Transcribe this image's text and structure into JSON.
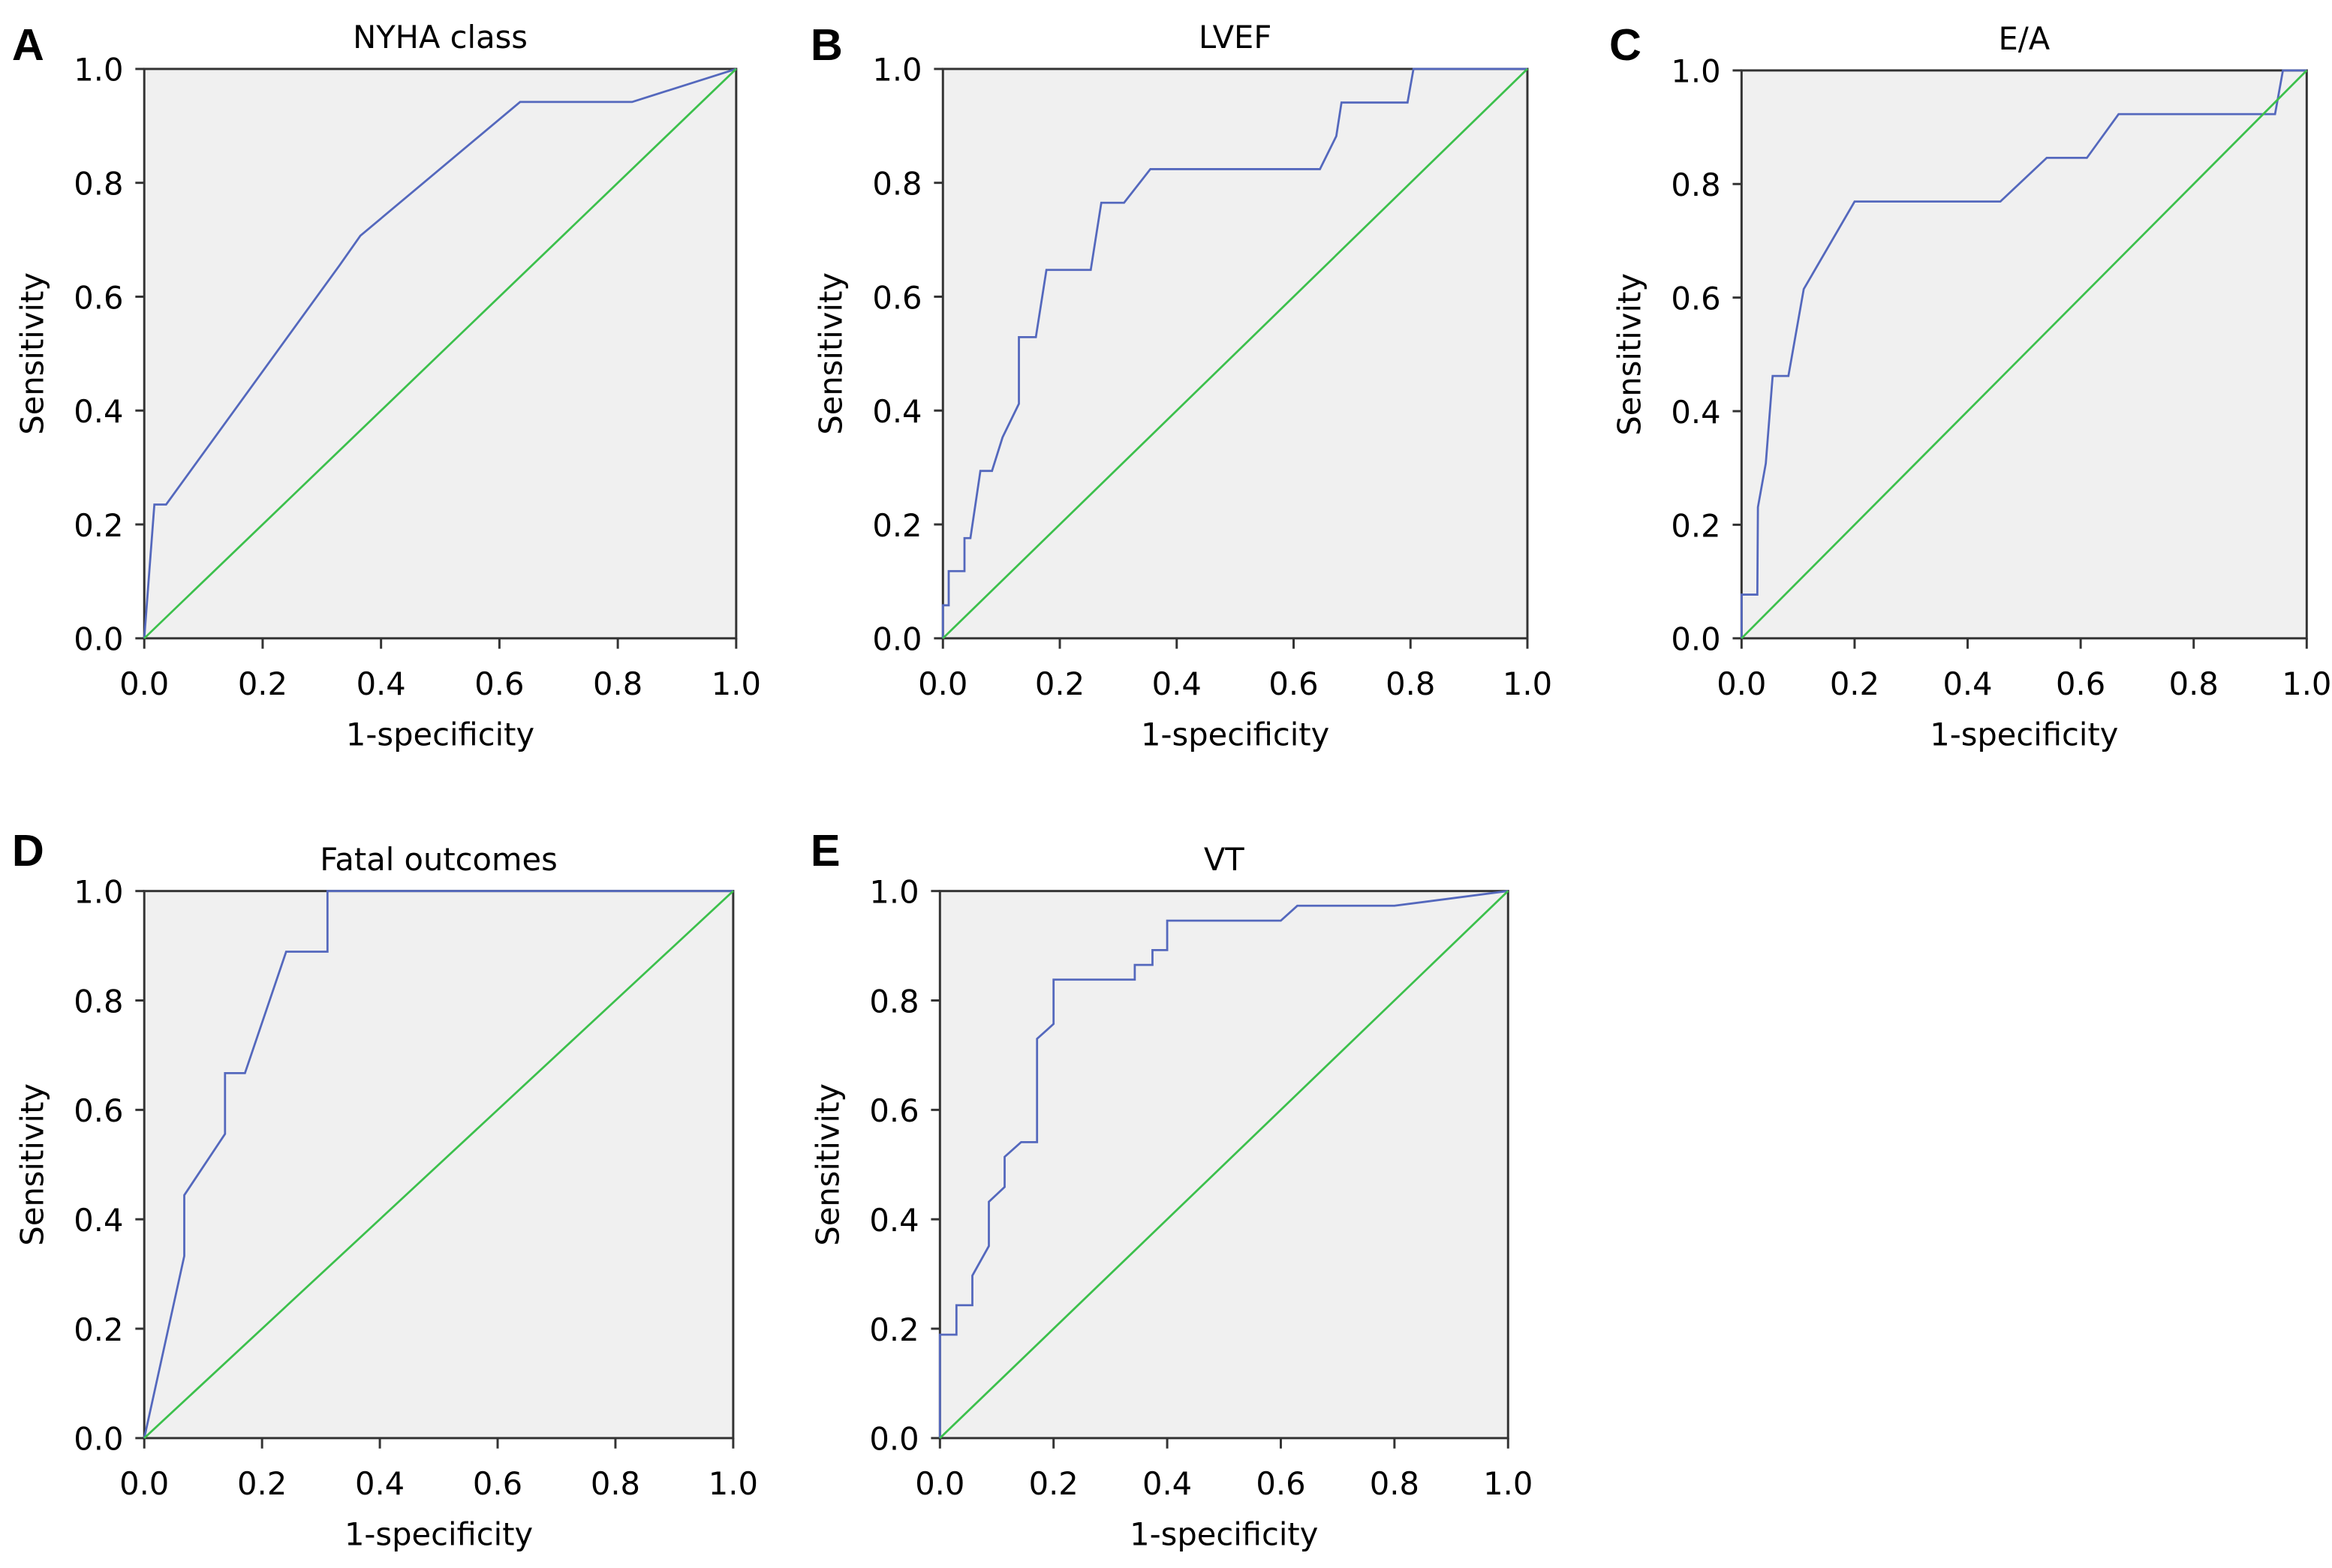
{
  "colors": {
    "roc_curve": "#5468bd",
    "reference_line": "#3cc04c",
    "plot_background": "#f0f0f0",
    "axis": "#333333"
  },
  "chart_data": [
    {
      "panel": "A",
      "type": "line",
      "title": "NYHA class",
      "xlabel": "1-specificity",
      "ylabel": "Sensitivity",
      "xlim": [
        0,
        1
      ],
      "ylim": [
        0,
        1
      ],
      "xticks": [
        "0.0",
        "0.2",
        "0.4",
        "0.6",
        "0.8",
        "1.0"
      ],
      "yticks": [
        "0.0",
        "0.2",
        "0.4",
        "0.6",
        "0.8",
        "1.0"
      ],
      "grid": false,
      "series": [
        {
          "x": [
            0,
            0.017,
            0.037,
            0.33,
            0.365,
            0.635,
            0.824,
            1
          ],
          "y": [
            0,
            0.235,
            0.235,
            0.655,
            0.707,
            0.942,
            0.942,
            1
          ]
        },
        {
          "x": [
            0,
            1
          ],
          "y": [
            0,
            1
          ]
        }
      ]
    },
    {
      "panel": "B",
      "type": "line",
      "title": "LVEF",
      "xlabel": "1-specificity",
      "ylabel": "Sensitivity",
      "xlim": [
        0,
        1
      ],
      "ylim": [
        0,
        1
      ],
      "xticks": [
        "0.0",
        "0.2",
        "0.4",
        "0.6",
        "0.8",
        "1.0"
      ],
      "yticks": [
        "0.0",
        "0.2",
        "0.4",
        "0.6",
        "0.8",
        "1.0"
      ],
      "grid": false,
      "series": [
        {
          "x": [
            0,
            0,
            0.01,
            0.01,
            0.037,
            0.037,
            0.047,
            0.064,
            0.084,
            0.102,
            0.13,
            0.13,
            0.159,
            0.177,
            0.253,
            0.271,
            0.31,
            0.355,
            0.645,
            0.673,
            0.682,
            0.795,
            0.805,
            1
          ],
          "y": [
            0,
            0.058,
            0.058,
            0.118,
            0.118,
            0.176,
            0.176,
            0.294,
            0.294,
            0.353,
            0.412,
            0.529,
            0.529,
            0.647,
            0.647,
            0.765,
            0.765,
            0.824,
            0.824,
            0.882,
            0.941,
            0.941,
            1,
            1
          ]
        },
        {
          "x": [
            0,
            1
          ],
          "y": [
            0,
            1
          ]
        }
      ]
    },
    {
      "panel": "C",
      "type": "line",
      "title": "E/A",
      "xlabel": "1-specificity",
      "ylabel": "Sensitivity",
      "xlim": [
        0,
        1
      ],
      "ylim": [
        0,
        1
      ],
      "xticks": [
        "0.0",
        "0.2",
        "0.4",
        "0.6",
        "0.8",
        "1.0"
      ],
      "yticks": [
        "0.0",
        "0.2",
        "0.4",
        "0.6",
        "0.8",
        "1.0"
      ],
      "grid": false,
      "series": [
        {
          "x": [
            0,
            0,
            0.028,
            0.029,
            0.043,
            0.055,
            0.083,
            0.11,
            0.2,
            0.458,
            0.54,
            0.611,
            0.667,
            0.944,
            0.958,
            1
          ],
          "y": [
            0,
            0.077,
            0.077,
            0.231,
            0.308,
            0.462,
            0.462,
            0.615,
            0.769,
            0.769,
            0.846,
            0.846,
            0.923,
            0.923,
            1,
            1
          ]
        },
        {
          "x": [
            0,
            1
          ],
          "y": [
            0,
            1
          ]
        }
      ]
    },
    {
      "panel": "D",
      "type": "line",
      "title": "Fatal outcomes",
      "xlabel": "1-specificity",
      "ylabel": "Sensitivity",
      "xlim": [
        0,
        1
      ],
      "ylim": [
        0,
        1
      ],
      "xticks": [
        "0.0",
        "0.2",
        "0.4",
        "0.6",
        "0.8",
        "1.0"
      ],
      "yticks": [
        "0.0",
        "0.2",
        "0.4",
        "0.6",
        "0.8",
        "1.0"
      ],
      "grid": false,
      "series": [
        {
          "x": [
            0,
            0.068,
            0.068,
            0.137,
            0.137,
            0.171,
            0.241,
            0.311,
            0.311,
            1
          ],
          "y": [
            0,
            0.333,
            0.444,
            0.556,
            0.667,
            0.667,
            0.889,
            0.889,
            1,
            1
          ]
        },
        {
          "x": [
            0,
            1
          ],
          "y": [
            0,
            1
          ]
        }
      ]
    },
    {
      "panel": "E",
      "type": "line",
      "title": "VT",
      "xlabel": "1-specificity",
      "ylabel": "Sensitivity",
      "xlim": [
        0,
        1
      ],
      "ylim": [
        0,
        1
      ],
      "xticks": [
        "0.0",
        "0.2",
        "0.4",
        "0.6",
        "0.8",
        "1.0"
      ],
      "yticks": [
        "0.0",
        "0.2",
        "0.4",
        "0.6",
        "0.8",
        "1.0"
      ],
      "grid": false,
      "series": [
        {
          "x": [
            0,
            0,
            0.029,
            0.029,
            0.057,
            0.057,
            0.086,
            0.086,
            0.114,
            0.114,
            0.143,
            0.171,
            0.171,
            0.2,
            0.2,
            0.343,
            0.343,
            0.374,
            0.374,
            0.4,
            0.4,
            0.6,
            0.629,
            0.8,
            1
          ],
          "y": [
            0,
            0.189,
            0.189,
            0.243,
            0.243,
            0.297,
            0.351,
            0.432,
            0.459,
            0.514,
            0.541,
            0.541,
            0.73,
            0.757,
            0.838,
            0.838,
            0.865,
            0.865,
            0.892,
            0.892,
            0.946,
            0.946,
            0.973,
            0.973,
            1
          ]
        },
        {
          "x": [
            0,
            1
          ],
          "y": [
            0,
            1
          ]
        }
      ]
    }
  ]
}
